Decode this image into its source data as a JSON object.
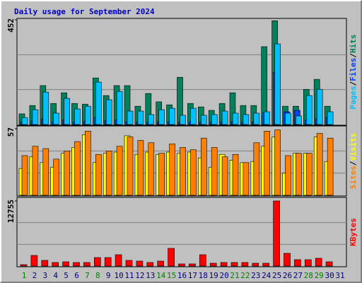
{
  "chart_data": {
    "type": "bar",
    "title": "Daily usage for September 2024",
    "categories": [
      "1",
      "2",
      "3",
      "4",
      "5",
      "6",
      "7",
      "8",
      "9",
      "10",
      "11",
      "12",
      "13",
      "14",
      "15",
      "16",
      "17",
      "18",
      "19",
      "20",
      "21",
      "22",
      "23",
      "24",
      "25",
      "26",
      "27",
      "28",
      "29",
      "30",
      "31"
    ],
    "category_colors": [
      "#008000",
      "#000080",
      "#000080",
      "#000080",
      "#000080",
      "#000080",
      "#008000",
      "#008000",
      "#000080",
      "#000080",
      "#000080",
      "#000080",
      "#000080",
      "#008000",
      "#008000",
      "#000080",
      "#000080",
      "#000080",
      "#000080",
      "#000080",
      "#008000",
      "#008000",
      "#000080",
      "#000080",
      "#000080",
      "#000080",
      "#000080",
      "#008000",
      "#008000",
      "#000080",
      "#000080"
    ],
    "legend_separator": "/",
    "panels": [
      {
        "ylim": [
          0,
          452
        ],
        "yticks": [
          452
        ],
        "series": [
          {
            "name": "Hits",
            "color": "#00805c",
            "values": [
              46,
              82,
              168,
              91,
              137,
              91,
              88,
              201,
              125,
              168,
              168,
              79,
              134,
              98,
              85,
              204,
              91,
              76,
              61,
              91,
              137,
              82,
              82,
              336,
              448,
              79,
              79,
              152,
              195,
              79,
              null
            ]
          },
          {
            "name": "Files",
            "color": "#0040ff",
            "values": [
              10,
              15,
              25,
              12,
              20,
              12,
              15,
              30,
              18,
              20,
              12,
              12,
              10,
              12,
              12,
              10,
              12,
              10,
              10,
              12,
              12,
              10,
              12,
              50,
              225,
              55,
              61,
              20,
              25,
              30,
              null
            ]
          },
          {
            "name": "Pages",
            "color": "#00c0ff",
            "values": [
              30,
              64,
              140,
              49,
              113,
              67,
              79,
              183,
              107,
              143,
              58,
              58,
              43,
              64,
              70,
              40,
              70,
              40,
              43,
              58,
              49,
              43,
              49,
              55,
              348,
              49,
              37,
              125,
              152,
              55,
              null
            ]
          }
        ]
      },
      {
        "ylim": [
          0,
          57
        ],
        "yticks": [
          57
        ],
        "series": [
          {
            "name": "Visits",
            "color": "#ffff00",
            "values": [
              23,
              33,
              28,
              24,
              36,
              41,
              52,
              28,
              36,
              37,
              51,
              35,
              37,
              35,
              37,
              36,
              37,
              32,
              24,
              35,
              30,
              28,
              29,
              42,
              50,
              19,
              36,
              36,
              50,
              29,
              null
            ]
          },
          {
            "name": "Sites",
            "color": "#ff8000",
            "values": [
              34,
              42,
              40,
              31,
              38,
              46,
              55,
              35,
              38,
              42,
              50,
              47,
              45,
              36,
              44,
              41,
              39,
              49,
              41,
              33,
              35,
              28,
              45,
              55,
              56,
              34,
              36,
              36,
              53,
              49,
              null
            ]
          }
        ]
      },
      {
        "ylim": [
          0,
          12755
        ],
        "yticks": [
          12755
        ],
        "series": [
          {
            "name": "KBytes",
            "color": "#ff0000",
            "values": [
              277,
              2079,
              1109,
              693,
              832,
              693,
              693,
              1663,
              1663,
              2218,
              1109,
              970,
              693,
              970,
              3465,
              416,
              416,
              2218,
              554,
              693,
              693,
              693,
              554,
              554,
              12755,
              2495,
              1247,
              1247,
              1525,
              832,
              null
            ]
          }
        ]
      }
    ]
  }
}
